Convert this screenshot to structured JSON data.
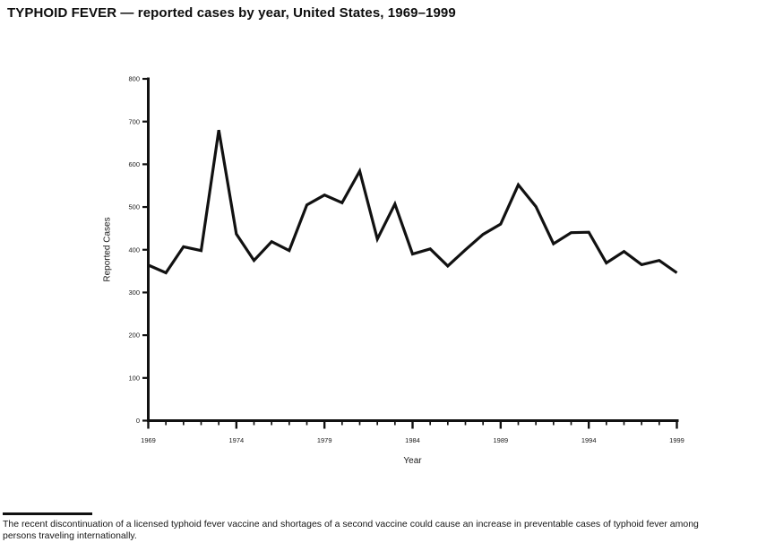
{
  "title": "TYPHOID FEVER — reported cases by year, United States, 1969–1999",
  "chart_data": {
    "type": "line",
    "title": "TYPHOID FEVER — reported cases by year, United States, 1969–1999",
    "xlabel": "Year",
    "ylabel": "Reported Cases",
    "x": [
      1969,
      1970,
      1971,
      1972,
      1973,
      1974,
      1975,
      1976,
      1977,
      1978,
      1979,
      1980,
      1981,
      1982,
      1983,
      1984,
      1985,
      1986,
      1987,
      1988,
      1989,
      1990,
      1991,
      1992,
      1993,
      1994,
      1995,
      1996,
      1997,
      1998,
      1999
    ],
    "values": [
      364,
      346,
      407,
      398,
      680,
      437,
      375,
      419,
      398,
      505,
      528,
      510,
      584,
      425,
      507,
      390,
      402,
      362,
      400,
      436,
      460,
      552,
      501,
      414,
      440,
      441,
      369,
      396,
      365,
      375,
      346
    ],
    "ylim": [
      0,
      800
    ],
    "yticks": [
      0,
      100,
      200,
      300,
      400,
      500,
      600,
      700,
      800
    ],
    "xticks_major": [
      1969,
      1974,
      1979,
      1984,
      1989,
      1994,
      1999
    ],
    "grid": false,
    "legend_position": "none",
    "line_color": "#111111",
    "background_color": "#ffffff"
  },
  "footnote": {
    "line1": "The recent discontinuation of a licensed typhoid fever vaccine and shortages of a second vaccine could cause an increase in preventable cases of typhoid fever among",
    "line2": "persons traveling internationally."
  }
}
